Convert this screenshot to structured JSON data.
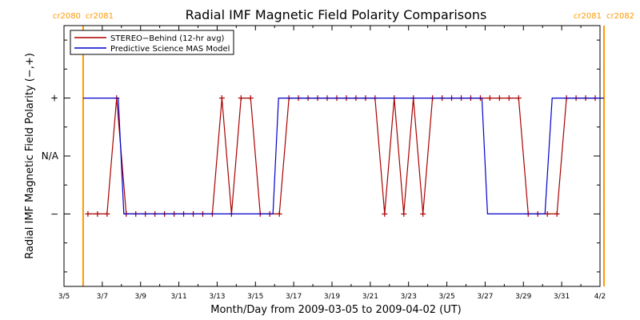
{
  "chart_data": {
    "type": "line",
    "title": "Radial IMF Magnetic Field Polarity Comparisons",
    "xlabel": "Month/Day from 2009-03-05 to 2009-04-02 (UT)",
    "ylabel": "Radial IMF Magnetic Field Polarity (−,+)",
    "xlim": [
      "2009-03-05",
      "2009-04-02"
    ],
    "ylim": [
      -2.25,
      2.25
    ],
    "x_ticks": [
      "3/5",
      "3/7",
      "3/9",
      "3/11",
      "3/13",
      "3/15",
      "3/17",
      "3/19",
      "3/21",
      "3/23",
      "3/25",
      "3/27",
      "3/29",
      "3/31",
      "4/2"
    ],
    "y_ticks": [
      {
        "value": 1,
        "label": "+"
      },
      {
        "value": 0,
        "label": "N/A"
      },
      {
        "value": -1,
        "label": "−"
      }
    ],
    "rotation_markers": [
      {
        "date": "2009-03-06T00:00",
        "left_label": "cr2080",
        "right_label": "cr2081",
        "color": "#ff9900"
      },
      {
        "date": "2009-04-02T05:00",
        "left_label": "cr2081",
        "right_label": "cr2082",
        "color": "#ff9900"
      }
    ],
    "legend": {
      "position": "top-left"
    },
    "series": [
      {
        "name": "STEREO−Behind (12-hr avg)",
        "color": "#aa0000",
        "style": "line+markers",
        "x": [
          "2009-03-06T06:00",
          "2009-03-06T18:00",
          "2009-03-07T06:00",
          "2009-03-07T18:00",
          "2009-03-08T06:00",
          "2009-03-08T18:00",
          "2009-03-09T06:00",
          "2009-03-09T18:00",
          "2009-03-10T06:00",
          "2009-03-10T18:00",
          "2009-03-11T06:00",
          "2009-03-11T18:00",
          "2009-03-12T06:00",
          "2009-03-12T18:00",
          "2009-03-13T06:00",
          "2009-03-13T18:00",
          "2009-03-14T06:00",
          "2009-03-14T18:00",
          "2009-03-15T06:00",
          "2009-03-15T18:00",
          "2009-03-16T06:00",
          "2009-03-16T18:00",
          "2009-03-17T06:00",
          "2009-03-17T18:00",
          "2009-03-18T06:00",
          "2009-03-18T18:00",
          "2009-03-19T06:00",
          "2009-03-19T18:00",
          "2009-03-20T06:00",
          "2009-03-20T18:00",
          "2009-03-21T06:00",
          "2009-03-21T18:00",
          "2009-03-22T06:00",
          "2009-03-22T18:00",
          "2009-03-23T06:00",
          "2009-03-23T18:00",
          "2009-03-24T06:00",
          "2009-03-24T18:00",
          "2009-03-25T06:00",
          "2009-03-25T18:00",
          "2009-03-26T06:00",
          "2009-03-26T18:00",
          "2009-03-27T06:00",
          "2009-03-27T18:00",
          "2009-03-28T06:00",
          "2009-03-28T18:00",
          "2009-03-29T06:00",
          "2009-03-29T18:00",
          "2009-03-30T06:00",
          "2009-03-30T18:00",
          "2009-03-31T06:00",
          "2009-03-31T18:00",
          "2009-04-01T06:00",
          "2009-04-01T18:00"
        ],
        "y": [
          -1,
          -1,
          -1,
          1,
          -1,
          -1,
          -1,
          -1,
          -1,
          -1,
          -1,
          -1,
          -1,
          -1,
          1,
          -1,
          1,
          1,
          -1,
          -1,
          -1,
          1,
          1,
          1,
          1,
          1,
          1,
          1,
          1,
          1,
          1,
          -1,
          1,
          -1,
          1,
          -1,
          1,
          1,
          1,
          1,
          1,
          1,
          1,
          1,
          1,
          1,
          -1,
          -1,
          -1,
          -1,
          1,
          1,
          1,
          1
        ]
      },
      {
        "name": "Predictive Science MAS Model",
        "color": "#0000cc",
        "style": "step",
        "x": [
          "2009-03-06T00:00",
          "2009-03-07T20:00",
          "2009-03-08T03:00",
          "2009-03-15T22:00",
          "2009-03-16T05:00",
          "2009-03-26T20:00",
          "2009-03-27T03:00",
          "2009-03-30T03:00",
          "2009-03-30T12:00",
          "2009-04-02T05:00"
        ],
        "y": [
          1,
          1,
          -1,
          -1,
          1,
          1,
          -1,
          -1,
          1,
          1
        ]
      }
    ]
  }
}
